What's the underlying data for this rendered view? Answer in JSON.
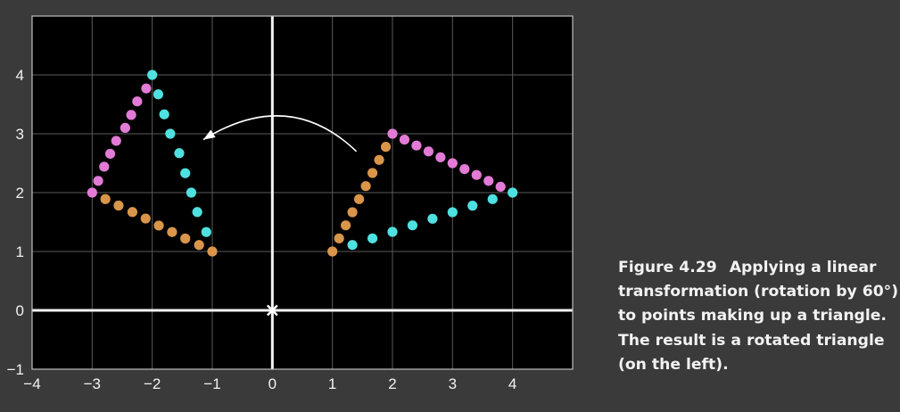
{
  "chart_data": {
    "type": "scatter",
    "xlim": [
      -4,
      5
    ],
    "ylim": [
      -1,
      5
    ],
    "x_ticks": [
      -4,
      -3,
      -2,
      -1,
      0,
      1,
      2,
      3,
      4
    ],
    "x_tick_labels": [
      "−4",
      "−3",
      "−2",
      "−1",
      "0",
      "1",
      "2",
      "3",
      "4"
    ],
    "y_ticks": [
      -1,
      0,
      1,
      2,
      3,
      4
    ],
    "y_tick_labels": [
      "−1",
      "0",
      "1",
      "2",
      "3",
      "4"
    ],
    "grid": true,
    "origin_marker": {
      "x": 0,
      "y": 0,
      "color": "#ffffff"
    },
    "series": [
      {
        "color": "#e27bd6",
        "points": [
          [
            2.0,
            3.0
          ],
          [
            2.2,
            2.9
          ],
          [
            2.4,
            2.8
          ],
          [
            2.6,
            2.7
          ],
          [
            2.8,
            2.6
          ],
          [
            3.0,
            2.5
          ],
          [
            3.2,
            2.4
          ],
          [
            3.4,
            2.3
          ],
          [
            3.6,
            2.2
          ],
          [
            3.8,
            2.1
          ]
        ]
      },
      {
        "color": "#4fe0e0",
        "points": [
          [
            4.0,
            2.0
          ],
          [
            3.667,
            1.889
          ],
          [
            3.333,
            1.778
          ],
          [
            3.0,
            1.667
          ],
          [
            2.667,
            1.556
          ],
          [
            2.333,
            1.444
          ],
          [
            2.0,
            1.333
          ],
          [
            1.667,
            1.222
          ],
          [
            1.333,
            1.111
          ]
        ]
      },
      {
        "color": "#d9954a",
        "points": [
          [
            1.0,
            1.0
          ],
          [
            1.111,
            1.222
          ],
          [
            1.222,
            1.444
          ],
          [
            1.333,
            1.667
          ],
          [
            1.444,
            1.889
          ],
          [
            1.556,
            2.111
          ],
          [
            1.667,
            2.333
          ],
          [
            1.778,
            2.556
          ],
          [
            1.889,
            2.778
          ]
        ]
      },
      {
        "color": "#e27bd6",
        "points": [
          [
            -3.0,
            2.0
          ],
          [
            -2.9,
            2.2
          ],
          [
            -2.8,
            2.44
          ],
          [
            -2.7,
            2.66
          ],
          [
            -2.6,
            2.88
          ],
          [
            -2.45,
            3.1
          ],
          [
            -2.35,
            3.32
          ],
          [
            -2.25,
            3.55
          ],
          [
            -2.1,
            3.77
          ]
        ]
      },
      {
        "color": "#4fe0e0",
        "points": [
          [
            -2.0,
            4.0
          ],
          [
            -1.9,
            3.67
          ],
          [
            -1.8,
            3.33
          ],
          [
            -1.7,
            3.0
          ],
          [
            -1.55,
            2.67
          ],
          [
            -1.45,
            2.33
          ],
          [
            -1.35,
            2.0
          ],
          [
            -1.25,
            1.67
          ],
          [
            -1.1,
            1.33
          ]
        ]
      },
      {
        "color": "#d9954a",
        "points": [
          [
            -1.0,
            1.0
          ],
          [
            -1.22,
            1.11
          ],
          [
            -1.45,
            1.22
          ],
          [
            -1.67,
            1.33
          ],
          [
            -1.89,
            1.44
          ],
          [
            -2.11,
            1.56
          ],
          [
            -2.33,
            1.67
          ],
          [
            -2.56,
            1.78
          ],
          [
            -2.78,
            1.89
          ]
        ]
      }
    ],
    "annotation_arrow": {
      "from": [
        1.4,
        2.7
      ],
      "to": [
        -1.15,
        2.9
      ],
      "peak": [
        0.2,
        3.3
      ],
      "color": "#ffffff"
    }
  },
  "caption": {
    "figure_number": "Figure 4.29",
    "lines": [
      "Applying a linear",
      "transformation (rotation by 60°)",
      "to points making up a triangle.",
      "The result is a rotated triangle",
      "(on the left)."
    ]
  }
}
